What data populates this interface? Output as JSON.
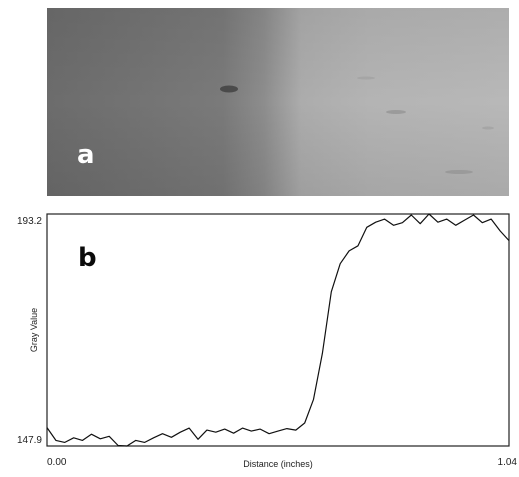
{
  "panel_a": {
    "label": "a"
  },
  "chart_data": {
    "type": "line",
    "panel_label": "b",
    "title": "",
    "xlabel": "Distance (inches)",
    "ylabel": "Gray Value",
    "xlim": [
      0.0,
      1.04
    ],
    "ylim": [
      147.9,
      193.2
    ],
    "x_tick_labels": [
      "0.00",
      "1.04"
    ],
    "y_tick_labels": [
      "147.9",
      "193.2"
    ],
    "grid": false,
    "series": [
      {
        "x": [
          0.0,
          0.02,
          0.04,
          0.06,
          0.08,
          0.1,
          0.12,
          0.14,
          0.16,
          0.18,
          0.2,
          0.22,
          0.24,
          0.26,
          0.28,
          0.3,
          0.32,
          0.34,
          0.36,
          0.38,
          0.4,
          0.42,
          0.44,
          0.46,
          0.48,
          0.5,
          0.52,
          0.54,
          0.56,
          0.58,
          0.6,
          0.62,
          0.64,
          0.66,
          0.68,
          0.7,
          0.72,
          0.74,
          0.76,
          0.78,
          0.8,
          0.82,
          0.84,
          0.86,
          0.88,
          0.9,
          0.92,
          0.94,
          0.96,
          0.98,
          1.0,
          1.02,
          1.04
        ],
        "values": [
          151.5,
          149.0,
          148.6,
          149.5,
          149.0,
          150.2,
          149.3,
          149.8,
          148.0,
          147.9,
          149.0,
          148.6,
          149.5,
          150.3,
          149.6,
          150.6,
          151.4,
          149.2,
          151.0,
          150.6,
          151.2,
          150.4,
          151.4,
          150.8,
          151.2,
          150.3,
          150.8,
          151.3,
          151.0,
          152.4,
          157.0,
          166.0,
          178.0,
          183.5,
          186.0,
          187.0,
          190.6,
          191.6,
          192.2,
          191.0,
          191.5,
          193.0,
          191.3,
          193.2,
          191.6,
          192.2,
          191.0,
          192.0,
          193.0,
          191.5,
          192.2,
          189.9,
          188.0
        ]
      }
    ]
  }
}
